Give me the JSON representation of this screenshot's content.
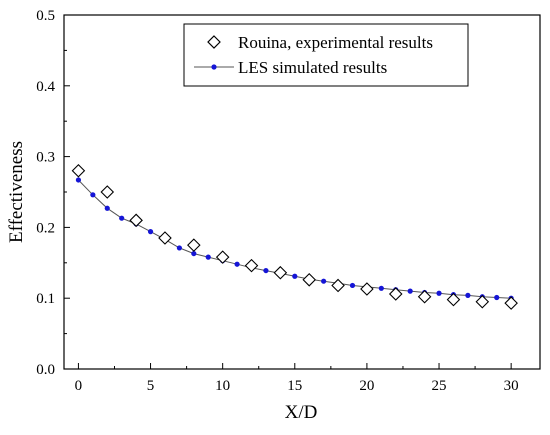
{
  "chart_data": {
    "type": "scatter",
    "title": "",
    "xlabel": "X/D",
    "ylabel": "Effectiveness",
    "xlim": [
      -1,
      32
    ],
    "ylim": [
      0.0,
      0.5
    ],
    "xticks": [
      0,
      5,
      10,
      15,
      20,
      25,
      30
    ],
    "yticks": [
      0.0,
      0.1,
      0.2,
      0.3,
      0.4,
      0.5
    ],
    "x_tick_labels": [
      "0",
      "5",
      "10",
      "15",
      "20",
      "25",
      "30"
    ],
    "y_tick_labels": [
      "0.0",
      "0.1",
      "0.2",
      "0.3",
      "0.4",
      "0.5"
    ],
    "grid": false,
    "legend_position": "top-right",
    "series": [
      {
        "name": "Rouina, experimental results",
        "marker": "open-diamond",
        "color": "#000000",
        "x": [
          0,
          2,
          4,
          6,
          8,
          10,
          12,
          14,
          16,
          18,
          20,
          22,
          24,
          26,
          28,
          30
        ],
        "y": [
          0.28,
          0.25,
          0.21,
          0.185,
          0.175,
          0.158,
          0.146,
          0.136,
          0.126,
          0.118,
          0.113,
          0.106,
          0.102,
          0.098,
          0.095,
          0.093
        ]
      },
      {
        "name": "LES simulated results",
        "marker": "filled-circle-line",
        "color": "#1515d6",
        "line_color": "#555555",
        "x": [
          0,
          1,
          2,
          3,
          4,
          5,
          6,
          7,
          8,
          9,
          10,
          11,
          12,
          13,
          14,
          15,
          16,
          17,
          18,
          19,
          20,
          21,
          22,
          23,
          24,
          25,
          26,
          27,
          28,
          29,
          30
        ],
        "y": [
          0.267,
          0.246,
          0.227,
          0.213,
          0.205,
          0.194,
          0.183,
          0.171,
          0.163,
          0.158,
          0.153,
          0.148,
          0.143,
          0.139,
          0.135,
          0.131,
          0.127,
          0.124,
          0.121,
          0.118,
          0.116,
          0.114,
          0.112,
          0.11,
          0.108,
          0.107,
          0.105,
          0.104,
          0.102,
          0.101,
          0.1
        ]
      }
    ]
  }
}
